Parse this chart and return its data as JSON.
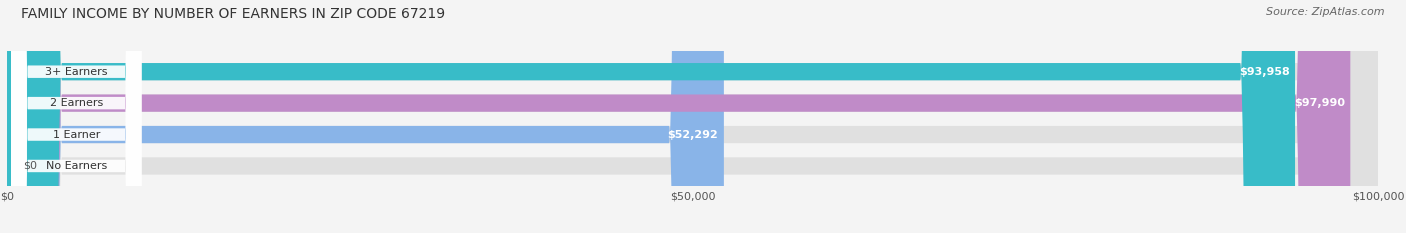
{
  "title": "FAMILY INCOME BY NUMBER OF EARNERS IN ZIP CODE 67219",
  "source": "Source: ZipAtlas.com",
  "categories": [
    "No Earners",
    "1 Earner",
    "2 Earners",
    "3+ Earners"
  ],
  "values": [
    0,
    52292,
    97990,
    93958
  ],
  "labels": [
    "$0",
    "$52,292",
    "$97,990",
    "$93,958"
  ],
  "bar_colors": [
    "#f08080",
    "#89b4e8",
    "#c08bc8",
    "#38bcc8"
  ],
  "xlim": [
    0,
    100000
  ],
  "xticks": [
    0,
    50000,
    100000
  ],
  "xtick_labels": [
    "$0",
    "$50,000",
    "$100,000"
  ],
  "label_fontsize": 8,
  "title_fontsize": 10,
  "source_fontsize": 8,
  "bar_height": 0.55,
  "fig_bg_color": "#f4f4f4"
}
